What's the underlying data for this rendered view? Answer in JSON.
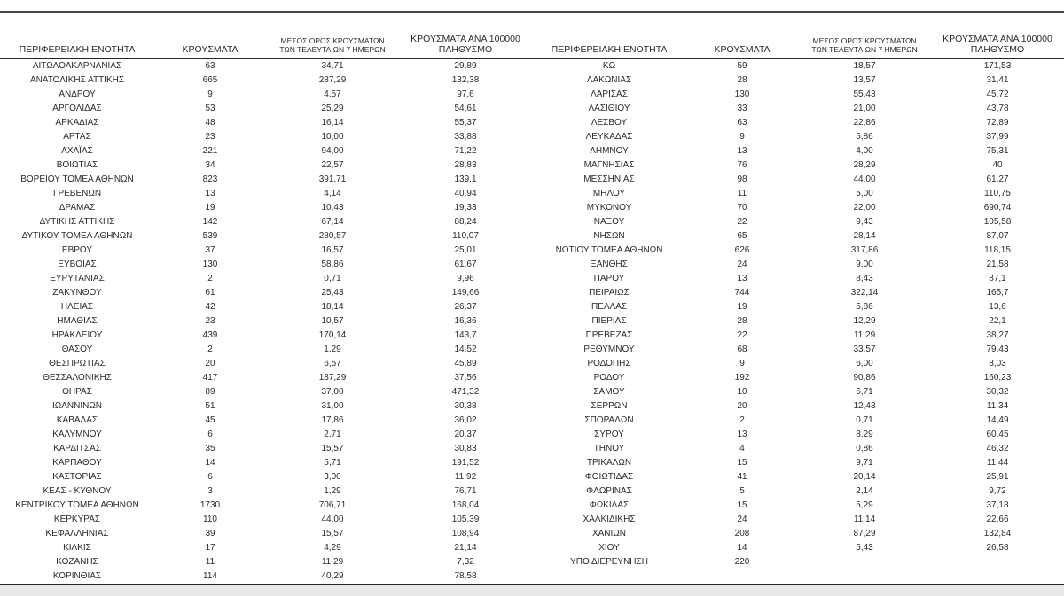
{
  "table": {
    "headers": {
      "region": "ΠΕΡΙΦΕΡΕΙΑΚΗ ΕΝΟΤΗΤΑ",
      "cases": "ΚΡΟΥΣΜΑΤΑ",
      "avg7_line1": "ΜΕΣΟΣ ΟΡΟΣ ΚΡΟΥΣΜΑΤΩΝ",
      "avg7_line2": "ΤΩΝ ΤΕΛΕΥΤΑΙΩΝ 7 ΗΜΕΡΩΝ",
      "per100k_line1": "ΚΡΟΥΣΜΑΤΑ ΑΝΑ 100000",
      "per100k_line2": "ΠΛΗΘΥΣΜΟ"
    },
    "left_rows": [
      [
        "ΑΙΤΩΛΟΑΚΑΡΝΑΝΙΑΣ",
        "63",
        "34,71",
        "29,89"
      ],
      [
        "ΑΝΑΤΟΛΙΚΗΣ ΑΤΤΙΚΗΣ",
        "665",
        "287,29",
        "132,38"
      ],
      [
        "ΑΝΔΡΟΥ",
        "9",
        "4,57",
        "97,6"
      ],
      [
        "ΑΡΓΟΛΙΔΑΣ",
        "53",
        "25,29",
        "54,61"
      ],
      [
        "ΑΡΚΑΔΙΑΣ",
        "48",
        "16,14",
        "55,37"
      ],
      [
        "ΑΡΤΑΣ",
        "23",
        "10,00",
        "33,88"
      ],
      [
        "ΑΧΑΪΑΣ",
        "221",
        "94,00",
        "71,22"
      ],
      [
        "ΒΟΙΩΤΙΑΣ",
        "34",
        "22,57",
        "28,83"
      ],
      [
        "ΒΟΡΕΙΟΥ ΤΟΜΕΑ ΑΘΗΝΩΝ",
        "823",
        "391,71",
        "139,1"
      ],
      [
        "ΓΡΕΒΕΝΩΝ",
        "13",
        "4,14",
        "40,94"
      ],
      [
        "ΔΡΑΜΑΣ",
        "19",
        "10,43",
        "19,33"
      ],
      [
        "ΔΥΤΙΚΗΣ ΑΤΤΙΚΗΣ",
        "142",
        "67,14",
        "88,24"
      ],
      [
        "ΔΥΤΙΚΟΥ ΤΟΜΕΑ ΑΘΗΝΩΝ",
        "539",
        "280,57",
        "110,07"
      ],
      [
        "ΕΒΡΟΥ",
        "37",
        "16,57",
        "25,01"
      ],
      [
        "ΕΥΒΟΙΑΣ",
        "130",
        "58,86",
        "61,67"
      ],
      [
        "ΕΥΡΥΤΑΝΙΑΣ",
        "2",
        "0,71",
        "9,96"
      ],
      [
        "ΖΑΚΥΝΘΟΥ",
        "61",
        "25,43",
        "149,66"
      ],
      [
        "ΗΛΕΙΑΣ",
        "42",
        "18,14",
        "26,37"
      ],
      [
        "ΗΜΑΘΙΑΣ",
        "23",
        "10,57",
        "16,36"
      ],
      [
        "ΗΡΑΚΛΕΙΟΥ",
        "439",
        "170,14",
        "143,7"
      ],
      [
        "ΘΑΣΟΥ",
        "2",
        "1,29",
        "14,52"
      ],
      [
        "ΘΕΣΠΡΩΤΙΑΣ",
        "20",
        "6,57",
        "45,89"
      ],
      [
        "ΘΕΣΣΑΛΟΝΙΚΗΣ",
        "417",
        "187,29",
        "37,56"
      ],
      [
        "ΘΗΡΑΣ",
        "89",
        "37,00",
        "471,32"
      ],
      [
        "ΙΩΑΝΝΙΝΩΝ",
        "51",
        "31,00",
        "30,38"
      ],
      [
        "ΚΑΒΑΛΑΣ",
        "45",
        "17,86",
        "36,02"
      ],
      [
        "ΚΑΛΥΜΝΟΥ",
        "6",
        "2,71",
        "20,37"
      ],
      [
        "ΚΑΡΔΙΤΣΑΣ",
        "35",
        "15,57",
        "30,83"
      ],
      [
        "ΚΑΡΠΑΘΟΥ",
        "14",
        "5,71",
        "191,52"
      ],
      [
        "ΚΑΣΤΟΡΙΑΣ",
        "6",
        "3,00",
        "11,92"
      ],
      [
        "ΚΕΑΣ - ΚΥΘΝΟΥ",
        "3",
        "1,29",
        "76,71"
      ],
      [
        "ΚΕΝΤΡΙΚΟΥ ΤΟΜΕΑ ΑΘΗΝΩΝ",
        "1730",
        "706,71",
        "168,04"
      ],
      [
        "ΚΕΡΚΥΡΑΣ",
        "110",
        "44,00",
        "105,39"
      ],
      [
        "ΚΕΦΑΛΛΗΝΙΑΣ",
        "39",
        "15,57",
        "108,94"
      ],
      [
        "ΚΙΛΚΙΣ",
        "17",
        "4,29",
        "21,14"
      ],
      [
        "ΚΟΖΑΝΗΣ",
        "11",
        "11,29",
        "7,32"
      ],
      [
        "ΚΟΡΙΝΘΙΑΣ",
        "114",
        "40,29",
        "78,58"
      ]
    ],
    "right_rows": [
      [
        "ΚΩ",
        "59",
        "18,57",
        "171,53"
      ],
      [
        "ΛΑΚΩΝΙΑΣ",
        "28",
        "13,57",
        "31,41"
      ],
      [
        "ΛΑΡΙΣΑΣ",
        "130",
        "55,43",
        "45,72"
      ],
      [
        "ΛΑΣΙΘΙΟΥ",
        "33",
        "21,00",
        "43,78"
      ],
      [
        "ΛΕΣΒΟΥ",
        "63",
        "22,86",
        "72,89"
      ],
      [
        "ΛΕΥΚΑΔΑΣ",
        "9",
        "5,86",
        "37,99"
      ],
      [
        "ΛΗΜΝΟΥ",
        "13",
        "4,00",
        "75,31"
      ],
      [
        "ΜΑΓΝΗΣΙΑΣ",
        "76",
        "28,29",
        "40"
      ],
      [
        "ΜΕΣΣΗΝΙΑΣ",
        "98",
        "44,00",
        "61,27"
      ],
      [
        "ΜΗΛΟΥ",
        "11",
        "5,00",
        "110,75"
      ],
      [
        "ΜΥΚΟΝΟΥ",
        "70",
        "22,00",
        "690,74"
      ],
      [
        "ΝΑΞΟΥ",
        "22",
        "9,43",
        "105,58"
      ],
      [
        "ΝΗΣΩΝ",
        "65",
        "28,14",
        "87,07"
      ],
      [
        "ΝΟΤΙΟΥ ΤΟΜΕΑ ΑΘΗΝΩΝ",
        "626",
        "317,86",
        "118,15"
      ],
      [
        "ΞΑΝΘΗΣ",
        "24",
        "9,00",
        "21,58"
      ],
      [
        "ΠΑΡΟΥ",
        "13",
        "8,43",
        "87,1"
      ],
      [
        "ΠΕΙΡΑΙΩΣ",
        "744",
        "322,14",
        "165,7"
      ],
      [
        "ΠΕΛΛΑΣ",
        "19",
        "5,86",
        "13,6"
      ],
      [
        "ΠΙΕΡΙΑΣ",
        "28",
        "12,29",
        "22,1"
      ],
      [
        "ΠΡΕΒΕΖΑΣ",
        "22",
        "11,29",
        "38,27"
      ],
      [
        "ΡΕΘΥΜΝΟΥ",
        "68",
        "33,57",
        "79,43"
      ],
      [
        "ΡΟΔΟΠΗΣ",
        "9",
        "6,00",
        "8,03"
      ],
      [
        "ΡΟΔΟΥ",
        "192",
        "90,86",
        "160,23"
      ],
      [
        "ΣΑΜΟΥ",
        "10",
        "6,71",
        "30,32"
      ],
      [
        "ΣΕΡΡΩΝ",
        "20",
        "12,43",
        "11,34"
      ],
      [
        "ΣΠΟΡΑΔΩΝ",
        "2",
        "0,71",
        "14,49"
      ],
      [
        "ΣΥΡΟΥ",
        "13",
        "8,29",
        "60,45"
      ],
      [
        "ΤΗΝΟΥ",
        "4",
        "0,86",
        "46,32"
      ],
      [
        "ΤΡΙΚΑΛΩΝ",
        "15",
        "9,71",
        "11,44"
      ],
      [
        "ΦΘΙΩΤΙΔΑΣ",
        "41",
        "20,14",
        "25,91"
      ],
      [
        "ΦΛΩΡΙΝΑΣ",
        "5",
        "2,14",
        "9,72"
      ],
      [
        "ΦΩΚΙΔΑΣ",
        "15",
        "5,29",
        "37,18"
      ],
      [
        "ΧΑΛΚΙΔΙΚΗΣ",
        "24",
        "11,14",
        "22,66"
      ],
      [
        "ΧΑΝΙΩΝ",
        "208",
        "87,29",
        "132,84"
      ],
      [
        "ΧΙΟΥ",
        "14",
        "5,43",
        "26,58"
      ],
      [
        "ΥΠΟ ΔΙΕΡΕΥΝΗΣΗ",
        "220",
        "",
        ""
      ]
    ],
    "colors": {
      "rule_top": "#4a4a4a",
      "rule_dark": "#262626",
      "text": "#2a2a2a",
      "below_strip": "#e8e8e8"
    }
  }
}
